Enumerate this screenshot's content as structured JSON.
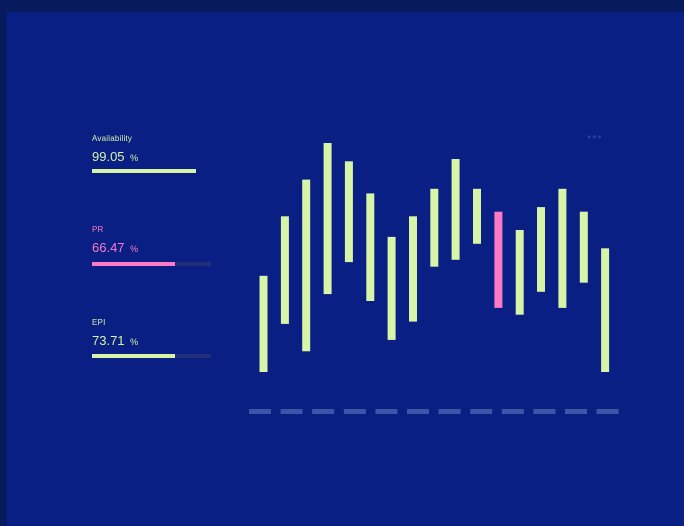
{
  "metrics": [
    {
      "label": "Availability",
      "value": "99.05",
      "unit": "%",
      "fill": 0.65,
      "color": "#d6f5a6",
      "track": false
    },
    {
      "label": "PR",
      "value": "66.47",
      "unit": "%",
      "fill": 0.7,
      "color": "#ff79c6",
      "track": true
    },
    {
      "label": "EPI",
      "value": "73.71",
      "unit": "%",
      "fill": 0.7,
      "color": "#d6f5a6",
      "track": true
    }
  ],
  "menu": {
    "icon": "more-horizontal-icon",
    "glyph": "•••"
  },
  "chart_data": {
    "type": "bar",
    "subtype": "floating-range",
    "ylim": [
      0,
      100
    ],
    "bars": [
      {
        "low": 0,
        "high": 42,
        "color": "#d6f5a6"
      },
      {
        "low": 21,
        "high": 68,
        "color": "#d6f5a6"
      },
      {
        "low": 9,
        "high": 84,
        "color": "#d6f5a6"
      },
      {
        "low": 34,
        "high": 100,
        "color": "#d6f5a6"
      },
      {
        "low": 48,
        "high": 92,
        "color": "#d6f5a6"
      },
      {
        "low": 31,
        "high": 78,
        "color": "#d6f5a6"
      },
      {
        "low": 14,
        "high": 59,
        "color": "#d6f5a6"
      },
      {
        "low": 22,
        "high": 68,
        "color": "#d6f5a6"
      },
      {
        "low": 46,
        "high": 80,
        "color": "#d6f5a6"
      },
      {
        "low": 49,
        "high": 93,
        "color": "#d6f5a6"
      },
      {
        "low": 56,
        "high": 80,
        "color": "#d6f5a6"
      },
      {
        "low": 28,
        "high": 70,
        "color": "#ff79c6"
      },
      {
        "low": 25,
        "high": 62,
        "color": "#d6f5a6"
      },
      {
        "low": 35,
        "high": 72,
        "color": "#d6f5a6"
      },
      {
        "low": 28,
        "high": 80,
        "color": "#d6f5a6"
      },
      {
        "low": 39,
        "high": 70,
        "color": "#d6f5a6"
      },
      {
        "low": 0,
        "high": 54,
        "color": "#d6f5a6"
      }
    ],
    "x_placeholder_count": 12,
    "placeholder_color": "#3b56a6"
  }
}
